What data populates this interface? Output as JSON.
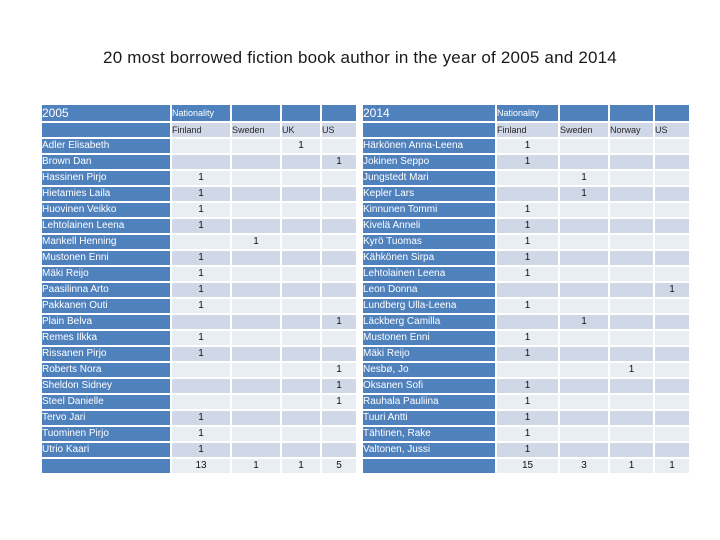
{
  "title": "20 most borrowed fiction book author in the year of 2005 and 2014",
  "colors": {
    "header_blue": "#4f81bd",
    "band_light": "#e9edf4",
    "band_dark": "#d0d8e8",
    "header_text": "#ffffff",
    "body_text": "#111111"
  },
  "tables": [
    {
      "year": "2005",
      "nationality_label": "Nationality",
      "columns": [
        "Finland",
        "Sweden",
        "UK",
        "US"
      ],
      "rows": [
        {
          "name": "Adler Elisabeth",
          "values": [
            "",
            "",
            "1",
            ""
          ]
        },
        {
          "name": "Brown Dan",
          "values": [
            "",
            "",
            "",
            "1"
          ]
        },
        {
          "name": "Hassinen Pirjo",
          "values": [
            "1",
            "",
            "",
            ""
          ]
        },
        {
          "name": "Hietamies Laila",
          "values": [
            "1",
            "",
            "",
            ""
          ]
        },
        {
          "name": "Huovinen Veikko",
          "values": [
            "1",
            "",
            "",
            ""
          ]
        },
        {
          "name": "Lehtolainen Leena",
          "values": [
            "1",
            "",
            "",
            ""
          ]
        },
        {
          "name": "Mankell Henning",
          "values": [
            "",
            "1",
            "",
            ""
          ]
        },
        {
          "name": "Mustonen Enni",
          "values": [
            "1",
            "",
            "",
            ""
          ]
        },
        {
          "name": "Mäki Reijo",
          "values": [
            "1",
            "",
            "",
            ""
          ]
        },
        {
          "name": "Paasilinna Arto",
          "values": [
            "1",
            "",
            "",
            ""
          ]
        },
        {
          "name": "Pakkanen Outi",
          "values": [
            "1",
            "",
            "",
            ""
          ]
        },
        {
          "name": "Plain Belva",
          "values": [
            "",
            "",
            "",
            "1"
          ]
        },
        {
          "name": "Remes Ilkka",
          "values": [
            "1",
            "",
            "",
            ""
          ]
        },
        {
          "name": "Rissanen Pirjo",
          "values": [
            "1",
            "",
            "",
            ""
          ]
        },
        {
          "name": "Roberts Nora",
          "values": [
            "",
            "",
            "",
            "1"
          ]
        },
        {
          "name": "Sheldon Sidney",
          "values": [
            "",
            "",
            "",
            "1"
          ]
        },
        {
          "name": "Steel Danielle",
          "values": [
            "",
            "",
            "",
            "1"
          ]
        },
        {
          "name": "Tervo Jari",
          "values": [
            "1",
            "",
            "",
            ""
          ]
        },
        {
          "name": "Tuominen Pirjo",
          "values": [
            "1",
            "",
            "",
            ""
          ]
        },
        {
          "name": "Utrio Kaari",
          "values": [
            "1",
            "",
            "",
            ""
          ]
        }
      ],
      "totals": [
        "13",
        "1",
        "1",
        "5"
      ]
    },
    {
      "year": "2014",
      "nationality_label": "Nationality",
      "columns": [
        "Finland",
        "Sweden",
        "Norway",
        "US"
      ],
      "rows": [
        {
          "name": "Härkönen Anna-Leena",
          "values": [
            "1",
            "",
            "",
            ""
          ]
        },
        {
          "name": "Jokinen Seppo",
          "values": [
            "1",
            "",
            "",
            ""
          ]
        },
        {
          "name": "Jungstedt Mari",
          "values": [
            "",
            "1",
            "",
            ""
          ]
        },
        {
          "name": "Kepler Lars",
          "values": [
            "",
            "1",
            "",
            ""
          ]
        },
        {
          "name": "Kinnunen Tommi",
          "values": [
            "1",
            "",
            "",
            ""
          ]
        },
        {
          "name": "Kivelä Anneli",
          "values": [
            "1",
            "",
            "",
            ""
          ]
        },
        {
          "name": "Kyrö Tuomas",
          "values": [
            "1",
            "",
            "",
            ""
          ]
        },
        {
          "name": "Kähkönen Sirpa",
          "values": [
            "1",
            "",
            "",
            ""
          ]
        },
        {
          "name": "Lehtolainen Leena",
          "values": [
            "1",
            "",
            "",
            ""
          ]
        },
        {
          "name": "Leon Donna",
          "values": [
            "",
            "",
            "",
            "1"
          ]
        },
        {
          "name": "Lundberg Ulla-Leena",
          "values": [
            "1",
            "",
            "",
            ""
          ]
        },
        {
          "name": "Läckberg Camilla",
          "values": [
            "",
            "1",
            "",
            ""
          ]
        },
        {
          "name": "Mustonen Enni",
          "values": [
            "1",
            "",
            "",
            ""
          ]
        },
        {
          "name": "Mäki Reijo",
          "values": [
            "1",
            "",
            "",
            ""
          ]
        },
        {
          "name": "Nesbø, Jo",
          "values": [
            "",
            "",
            "1",
            ""
          ]
        },
        {
          "name": "Oksanen Sofi",
          "values": [
            "1",
            "",
            "",
            ""
          ]
        },
        {
          "name": "Rauhala Pauliina",
          "values": [
            "1",
            "",
            "",
            ""
          ]
        },
        {
          "name": "Tuuri Antti",
          "values": [
            "1",
            "",
            "",
            ""
          ]
        },
        {
          "name": "Tähtinen, Rake",
          "values": [
            "1",
            "",
            "",
            ""
          ]
        },
        {
          "name": "Valtonen, Jussi",
          "values": [
            "1",
            "",
            "",
            ""
          ]
        }
      ],
      "totals": [
        "15",
        "3",
        "1",
        "1"
      ]
    }
  ]
}
